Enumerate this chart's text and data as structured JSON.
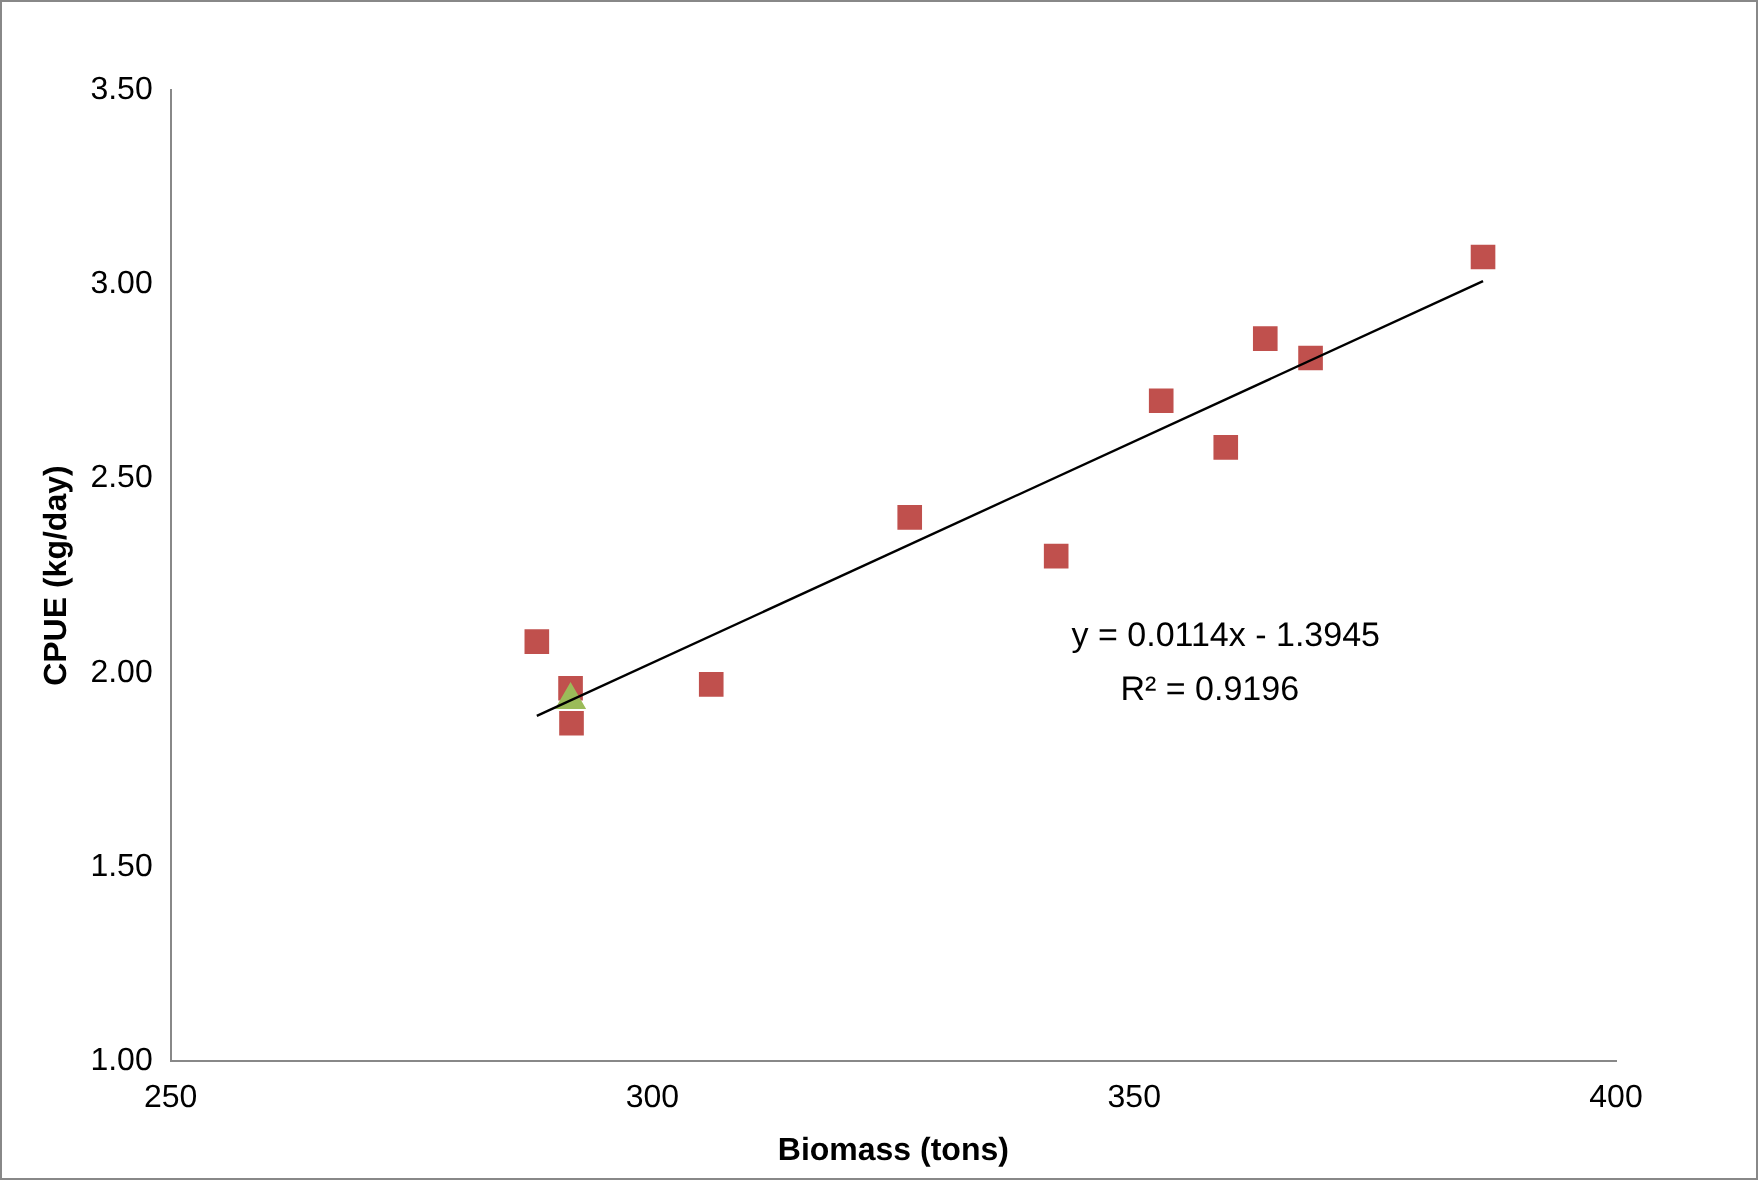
{
  "chart_data": {
    "type": "scatter",
    "xlabel": "Biomass (tons)",
    "ylabel": "CPUE (kg/day)",
    "xlim": [
      250,
      400
    ],
    "xticks": [
      250,
      300,
      350,
      400
    ],
    "ylim": [
      1.0,
      3.5
    ],
    "yticks": [
      {
        "value": 1.0,
        "label": "1.00"
      },
      {
        "value": 1.5,
        "label": "1.50"
      },
      {
        "value": 2.0,
        "label": "2.00"
      },
      {
        "value": 2.5,
        "label": "2.50"
      },
      {
        "value": 3.0,
        "label": "3.00"
      },
      {
        "value": 3.5,
        "label": "3.50"
      }
    ],
    "grid": false,
    "legend": false,
    "series": [
      {
        "type": "scatter",
        "color": "#c0504d",
        "marker": "square",
        "x": [
          288.0,
          291.5,
          291.6,
          306.1,
          326.7,
          341.9,
          352.8,
          359.5,
          363.6,
          368.3,
          386.2
        ],
        "values": [
          2.08,
          1.96,
          1.87,
          1.97,
          2.4,
          2.3,
          2.7,
          2.58,
          2.86,
          2.81,
          3.07
        ]
      },
      {
        "type": "scatter",
        "color": "#9bbb59",
        "marker": "triangle",
        "x": [
          291.5
        ],
        "values": [
          1.93
        ]
      },
      {
        "type": "line",
        "color": "#000000",
        "marker": "none",
        "x": [
          288.0,
          386.2
        ],
        "values": [
          1.889,
          3.008
        ]
      }
    ],
    "annotations": [
      "y = 0.0114x - 1.3945",
      "R² = 0.9196"
    ]
  }
}
